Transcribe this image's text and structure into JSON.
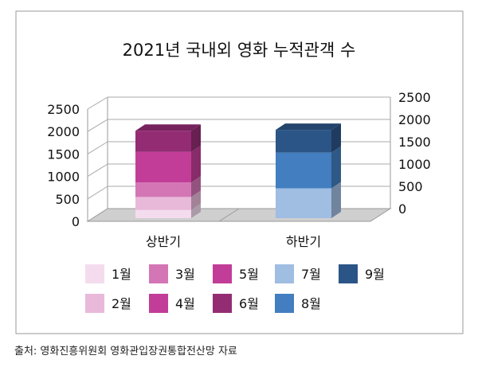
{
  "chart_data": {
    "type": "bar",
    "stacked": true,
    "three_d": true,
    "title": "2021년 국내외 영화 누적관객 수",
    "categories": [
      "상반기",
      "하반기"
    ],
    "ylim": [
      0,
      2500
    ],
    "yticks": [
      0,
      500,
      1000,
      1500,
      2000,
      2500
    ],
    "grid": true,
    "legend_position": "bottom",
    "series": [
      {
        "name": "1월",
        "category": "상반기",
        "value": 185,
        "color": "#f4dcee"
      },
      {
        "name": "2월",
        "category": "상반기",
        "value": 290,
        "color": "#e9b9d9"
      },
      {
        "name": "3월",
        "category": "상반기",
        "value": 325,
        "color": "#d476b6"
      },
      {
        "name": "4월",
        "category": "상반기",
        "value": 685,
        "color": "#c23d98"
      },
      {
        "name": "5월",
        "category": "상반기",
        "value": 0,
        "color": "#c23d98"
      },
      {
        "name": "6월",
        "category": "상반기",
        "value": 475,
        "color": "#942c74"
      },
      {
        "name": "7월",
        "category": "하반기",
        "value": 670,
        "color": "#a0bde2"
      },
      {
        "name": "8월",
        "category": "하반기",
        "value": 800,
        "color": "#427ec0"
      },
      {
        "name": "9월",
        "category": "하반기",
        "value": 510,
        "color": "#2c5587"
      }
    ],
    "legend_order": [
      "1월",
      "3월",
      "5월",
      "7월",
      "9월",
      "2월",
      "4월",
      "6월",
      "8월"
    ]
  },
  "source": "출처: 영화진흥위원회 영화관입장권통합전산망 자료"
}
